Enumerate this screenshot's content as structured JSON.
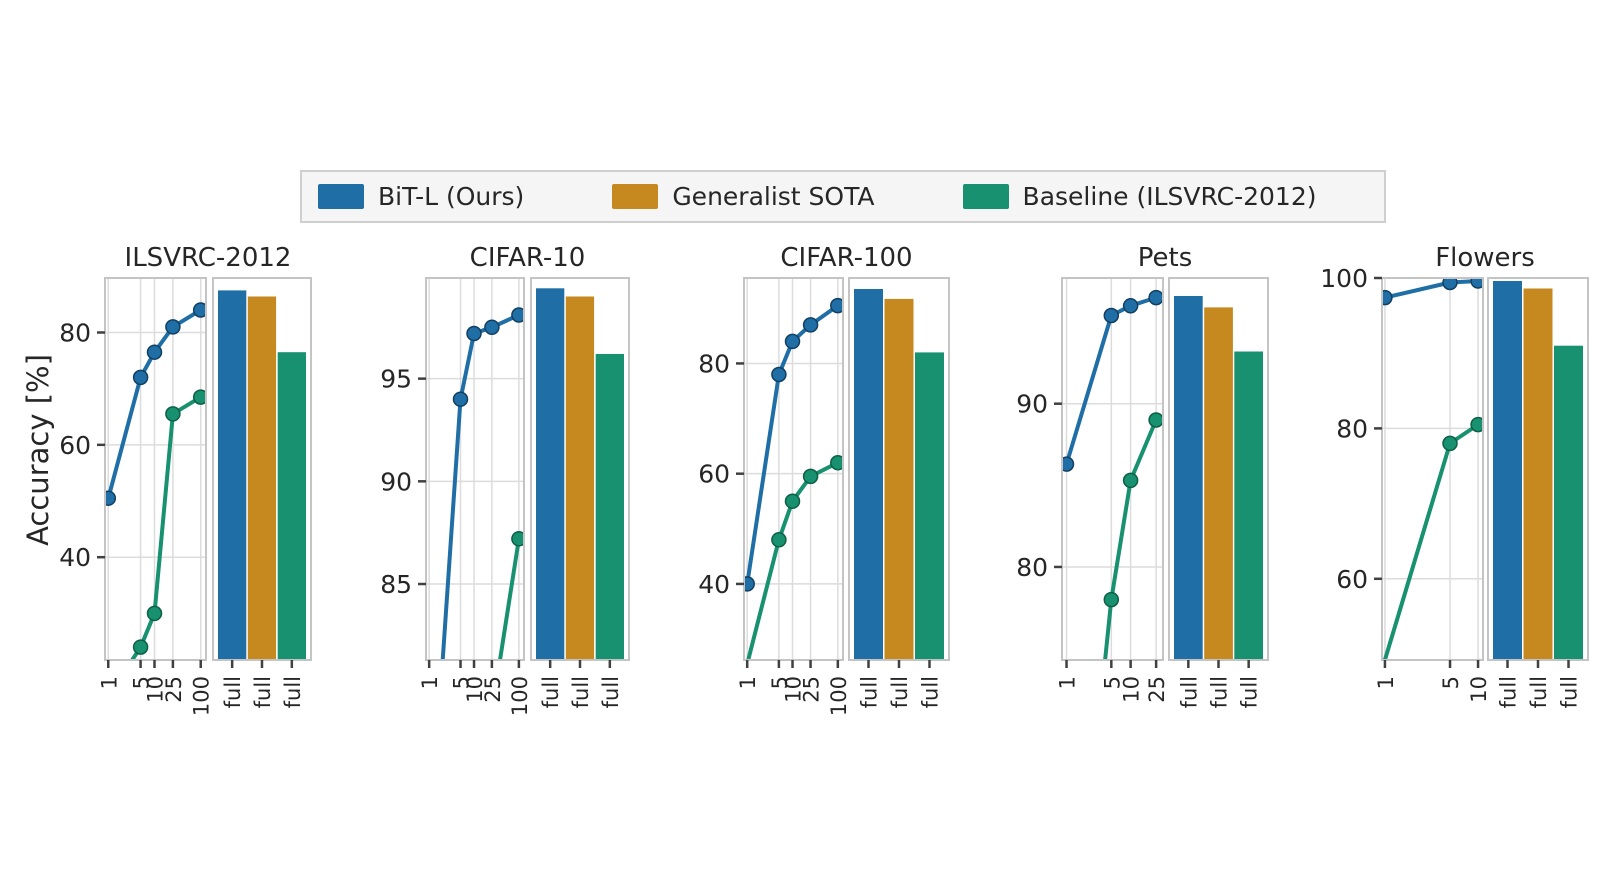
{
  "ylabel": "Accuracy [%]",
  "legend": {
    "items": [
      {
        "series": "bit",
        "label": "BiT-L (Ours)",
        "color": "#1f6fa6",
        "marker_edge": "#123f61"
      },
      {
        "series": "sota",
        "label": "Generalist SOTA",
        "color": "#c5891f",
        "marker_edge": "#8a5d10"
      },
      {
        "series": "baseline",
        "label": "Baseline (ILSVRC-2012)",
        "color": "#17916f",
        "marker_edge": "#0d5f45"
      }
    ]
  },
  "chart_data": {
    "type": "line+bar",
    "ylabel": "Accuracy [%]",
    "x_axis": "examples per class (log scale), plus 'full' dataset bars",
    "bar_tick_label": "full",
    "bar_series_order": [
      "bit",
      "sota",
      "baseline"
    ],
    "grid": true,
    "panels": [
      {
        "title": "ILSVRC-2012",
        "ylim": [
          21.7,
          89.7
        ],
        "yticks": [
          40,
          60,
          80
        ],
        "xlim": [
          0.85,
          130
        ],
        "xticks": [
          1,
          5,
          10,
          25,
          100
        ],
        "lines": {
          "bit": {
            "entry_from_below": false,
            "points": [
              [
                1,
                50.5
              ],
              [
                5,
                72
              ],
              [
                10,
                76.5
              ],
              [
                25,
                81
              ],
              [
                100,
                84
              ]
            ]
          },
          "baseline": {
            "entry_from_below": true,
            "points": [
              [
                3.3,
                21.7
              ],
              [
                5,
                24
              ],
              [
                10,
                30
              ],
              [
                25,
                65.5
              ],
              [
                100,
                68.5
              ]
            ]
          }
        },
        "bars": {
          "bit": 87.5,
          "sota": 86.4,
          "baseline": 76.5
        }
      },
      {
        "title": "CIFAR-10",
        "ylim": [
          81.3,
          99.9
        ],
        "yticks": [
          85,
          90,
          95
        ],
        "xlim": [
          0.85,
          130
        ],
        "xticks": [
          1,
          5,
          10,
          25,
          100
        ],
        "lines": {
          "bit": {
            "entry_from_below": true,
            "points": [
              [
                2.0,
                81.3
              ],
              [
                5,
                94
              ],
              [
                10,
                97.2
              ],
              [
                25,
                97.5
              ],
              [
                100,
                98.1
              ]
            ]
          },
          "baseline": {
            "entry_from_below": true,
            "points": [
              [
                38,
                81.3
              ],
              [
                100,
                87.2
              ]
            ]
          }
        },
        "bars": {
          "bit": 99.4,
          "sota": 99.0,
          "baseline": 96.2
        }
      },
      {
        "title": "CIFAR-100",
        "ylim": [
          26.2,
          95.5
        ],
        "yticks": [
          40,
          60,
          80
        ],
        "xlim": [
          0.85,
          130
        ],
        "xticks": [
          1,
          5,
          10,
          25,
          100
        ],
        "lines": {
          "bit": {
            "entry_from_below": false,
            "points": [
              [
                1,
                40
              ],
              [
                5,
                78
              ],
              [
                10,
                84
              ],
              [
                25,
                87
              ],
              [
                100,
                90.5
              ]
            ]
          },
          "baseline": {
            "entry_from_below": true,
            "points": [
              [
                1.05,
                26.2
              ],
              [
                5,
                48
              ],
              [
                10,
                55
              ],
              [
                25,
                59.5
              ],
              [
                100,
                62
              ]
            ]
          }
        },
        "bars": {
          "bit": 93.5,
          "sota": 91.7,
          "baseline": 82.0
        }
      },
      {
        "title": "Pets",
        "ylim": [
          74.3,
          97.7
        ],
        "yticks": [
          80,
          90
        ],
        "xlim": [
          0.85,
          32
        ],
        "xticks": [
          1,
          5,
          10,
          25
        ],
        "lines": {
          "bit": {
            "entry_from_below": false,
            "points": [
              [
                1,
                86.3
              ],
              [
                5,
                95.4
              ],
              [
                10,
                96.0
              ],
              [
                25,
                96.5
              ]
            ]
          },
          "baseline": {
            "entry_from_below": true,
            "points": [
              [
                4.0,
                74.3
              ],
              [
                5,
                78
              ],
              [
                10,
                85.3
              ],
              [
                25,
                89
              ]
            ]
          }
        },
        "bars": {
          "bit": 96.6,
          "sota": 95.9,
          "baseline": 93.2
        }
      },
      {
        "title": "Flowers",
        "ylim": [
          49.2,
          100.0
        ],
        "yticks": [
          60,
          80,
          100
        ],
        "xlim": [
          0.93,
          11.3
        ],
        "xticks": [
          1,
          5,
          10
        ],
        "lines": {
          "bit": {
            "entry_from_below": false,
            "points": [
              [
                1,
                97.4
              ],
              [
                5,
                99.4
              ],
              [
                10,
                99.6
              ]
            ]
          },
          "baseline": {
            "entry_from_below": true,
            "points": [
              [
                1,
                49.2
              ],
              [
                5,
                78
              ],
              [
                10,
                80.5
              ]
            ]
          }
        },
        "bars": {
          "bit": 99.6,
          "sota": 98.6,
          "baseline": 91.0
        }
      }
    ]
  }
}
